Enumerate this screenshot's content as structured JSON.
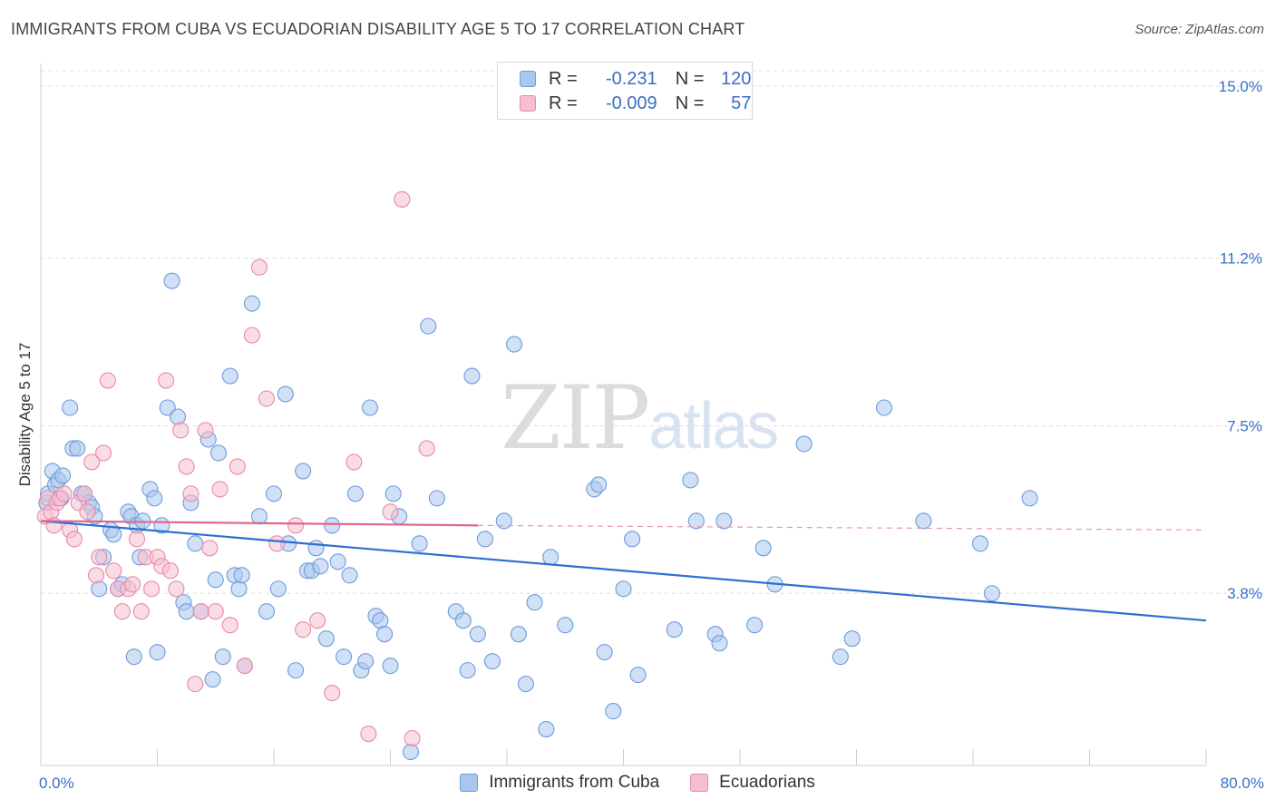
{
  "header": {
    "title": "IMMIGRANTS FROM CUBA VS ECUADORIAN DISABILITY AGE 5 TO 17 CORRELATION CHART",
    "source": "Source: ZipAtlas.com"
  },
  "watermark": {
    "zip": "ZIP",
    "atlas": "atlas"
  },
  "legend": {
    "rows": [
      {
        "r_label": "R =",
        "r_value": "-0.231",
        "n_label": "N =",
        "n_value": "120",
        "color": "#a9c6ef",
        "border": "#6f9bd9"
      },
      {
        "r_label": "R =",
        "r_value": "-0.009",
        "n_label": "N =",
        "n_value": "57",
        "color": "#f6bfd0",
        "border": "#e88aa8"
      }
    ]
  },
  "bottom_legend": {
    "items": [
      {
        "label": "Immigrants from Cuba",
        "color": "#a9c6ef",
        "border": "#6f9bd9"
      },
      {
        "label": "Ecuadorians",
        "color": "#f6bfd0",
        "border": "#e88aa8"
      }
    ]
  },
  "chart_data": {
    "type": "scatter",
    "title": "IMMIGRANTS FROM CUBA VS ECUADORIAN DISABILITY AGE 5 TO 17 CORRELATION CHART",
    "xlabel": "",
    "ylabel": "Disability Age 5 to 17",
    "xlim": [
      0,
      80
    ],
    "ylim": [
      0,
      15.5
    ],
    "x_tick_labels": [
      "0.0%",
      "80.0%"
    ],
    "y_ticks": [
      3.8,
      7.5,
      11.2,
      15.0
    ],
    "y_tick_labels": [
      "3.8%",
      "7.5%",
      "11.2%",
      "15.0%"
    ],
    "grid": "horizontal dashed",
    "legend_position": "top-center",
    "series": [
      {
        "name": "Immigrants from Cuba",
        "color": "#6f9bd9",
        "fill": "#a9c6ef",
        "trend": {
          "x": [
            0,
            80
          ],
          "y": [
            5.4,
            3.2
          ],
          "style": "solid"
        },
        "points": [
          [
            0.4,
            5.8
          ],
          [
            0.5,
            6.0
          ],
          [
            0.8,
            6.5
          ],
          [
            1.0,
            6.2
          ],
          [
            1.2,
            6.3
          ],
          [
            1.4,
            5.9
          ],
          [
            1.5,
            6.4
          ],
          [
            2.0,
            7.9
          ],
          [
            2.2,
            7.0
          ],
          [
            2.5,
            7.0
          ],
          [
            2.8,
            6.0
          ],
          [
            3.0,
            6.0
          ],
          [
            3.3,
            5.8
          ],
          [
            3.5,
            5.7
          ],
          [
            3.7,
            5.5
          ],
          [
            4.0,
            3.9
          ],
          [
            4.3,
            4.6
          ],
          [
            4.8,
            5.2
          ],
          [
            5.0,
            5.1
          ],
          [
            5.3,
            3.9
          ],
          [
            5.6,
            4.0
          ],
          [
            6.0,
            5.6
          ],
          [
            6.2,
            5.5
          ],
          [
            6.4,
            2.4
          ],
          [
            6.6,
            5.3
          ],
          [
            6.8,
            4.6
          ],
          [
            7.0,
            5.4
          ],
          [
            7.5,
            6.1
          ],
          [
            7.8,
            5.9
          ],
          [
            8.0,
            2.5
          ],
          [
            8.3,
            5.3
          ],
          [
            8.7,
            7.9
          ],
          [
            9.0,
            10.7
          ],
          [
            9.4,
            7.7
          ],
          [
            9.8,
            3.6
          ],
          [
            10.0,
            3.4
          ],
          [
            10.3,
            5.8
          ],
          [
            10.6,
            4.9
          ],
          [
            11.0,
            3.4
          ],
          [
            11.5,
            7.2
          ],
          [
            11.8,
            1.9
          ],
          [
            12.0,
            4.1
          ],
          [
            12.2,
            6.9
          ],
          [
            12.5,
            2.4
          ],
          [
            13.0,
            8.6
          ],
          [
            13.3,
            4.2
          ],
          [
            13.6,
            3.9
          ],
          [
            13.8,
            4.2
          ],
          [
            14.0,
            2.2
          ],
          [
            14.5,
            10.2
          ],
          [
            15.0,
            5.5
          ],
          [
            15.5,
            3.4
          ],
          [
            16.0,
            6.0
          ],
          [
            16.3,
            3.9
          ],
          [
            16.8,
            8.2
          ],
          [
            17.0,
            4.9
          ],
          [
            17.5,
            2.1
          ],
          [
            18.0,
            6.5
          ],
          [
            18.3,
            4.3
          ],
          [
            18.6,
            4.3
          ],
          [
            18.9,
            4.8
          ],
          [
            19.2,
            4.4
          ],
          [
            19.6,
            2.8
          ],
          [
            20.0,
            5.3
          ],
          [
            20.4,
            4.5
          ],
          [
            20.8,
            2.4
          ],
          [
            21.2,
            4.2
          ],
          [
            21.6,
            6.0
          ],
          [
            22.0,
            2.1
          ],
          [
            22.3,
            2.3
          ],
          [
            22.6,
            7.9
          ],
          [
            23.0,
            3.3
          ],
          [
            23.3,
            3.2
          ],
          [
            23.6,
            2.9
          ],
          [
            24.0,
            2.2
          ],
          [
            24.2,
            6.0
          ],
          [
            24.6,
            5.5
          ],
          [
            25.4,
            0.3
          ],
          [
            26.0,
            4.9
          ],
          [
            26.6,
            9.7
          ],
          [
            27.2,
            5.9
          ],
          [
            28.5,
            3.4
          ],
          [
            29.0,
            3.2
          ],
          [
            29.3,
            2.1
          ],
          [
            29.6,
            8.6
          ],
          [
            30.0,
            2.9
          ],
          [
            30.5,
            5.0
          ],
          [
            31.0,
            2.3
          ],
          [
            31.8,
            5.4
          ],
          [
            32.5,
            9.3
          ],
          [
            32.8,
            2.9
          ],
          [
            33.3,
            1.8
          ],
          [
            33.9,
            3.6
          ],
          [
            34.7,
            0.8
          ],
          [
            35.0,
            4.6
          ],
          [
            36.0,
            3.1
          ],
          [
            38.0,
            6.1
          ],
          [
            38.3,
            6.2
          ],
          [
            38.7,
            2.5
          ],
          [
            39.3,
            1.2
          ],
          [
            40.0,
            3.9
          ],
          [
            40.6,
            5.0
          ],
          [
            41.0,
            2.0
          ],
          [
            43.5,
            3.0
          ],
          [
            44.6,
            6.3
          ],
          [
            45.0,
            5.4
          ],
          [
            46.3,
            2.9
          ],
          [
            46.6,
            2.7
          ],
          [
            46.9,
            5.4
          ],
          [
            49.0,
            3.1
          ],
          [
            49.6,
            4.8
          ],
          [
            50.4,
            4.0
          ],
          [
            52.4,
            7.1
          ],
          [
            54.9,
            2.4
          ],
          [
            55.7,
            2.8
          ],
          [
            57.9,
            7.9
          ],
          [
            60.6,
            5.4
          ],
          [
            64.5,
            4.9
          ],
          [
            65.3,
            3.8
          ],
          [
            67.9,
            5.9
          ]
        ]
      },
      {
        "name": "Ecuadorians",
        "color": "#e88aa8",
        "fill": "#f6bfd0",
        "trend": {
          "x": [
            0,
            30
          ],
          "y": [
            5.4,
            5.3
          ],
          "style": "solid",
          "extended": {
            "x": [
              30,
              80
            ],
            "y": [
              5.3,
              5.2
            ],
            "style": "dashed"
          }
        },
        "points": [
          [
            0.3,
            5.5
          ],
          [
            0.5,
            5.9
          ],
          [
            0.7,
            5.6
          ],
          [
            0.9,
            5.3
          ],
          [
            1.1,
            5.8
          ],
          [
            1.3,
            5.9
          ],
          [
            1.6,
            6.0
          ],
          [
            2.0,
            5.2
          ],
          [
            2.3,
            5.0
          ],
          [
            2.6,
            5.8
          ],
          [
            3.0,
            6.0
          ],
          [
            3.2,
            5.6
          ],
          [
            3.5,
            6.7
          ],
          [
            3.8,
            4.2
          ],
          [
            4.0,
            4.6
          ],
          [
            4.3,
            6.9
          ],
          [
            4.6,
            8.5
          ],
          [
            5.0,
            4.3
          ],
          [
            5.3,
            3.9
          ],
          [
            5.6,
            3.4
          ],
          [
            6.0,
            3.9
          ],
          [
            6.3,
            4.0
          ],
          [
            6.6,
            5.0
          ],
          [
            6.9,
            3.4
          ],
          [
            7.2,
            4.6
          ],
          [
            7.6,
            3.9
          ],
          [
            8.0,
            4.6
          ],
          [
            8.3,
            4.4
          ],
          [
            8.6,
            8.5
          ],
          [
            8.9,
            4.3
          ],
          [
            9.3,
            3.9
          ],
          [
            9.6,
            7.4
          ],
          [
            10.0,
            6.6
          ],
          [
            10.3,
            6.0
          ],
          [
            10.6,
            1.8
          ],
          [
            11.0,
            3.4
          ],
          [
            11.3,
            7.4
          ],
          [
            11.6,
            4.8
          ],
          [
            12.0,
            3.4
          ],
          [
            12.3,
            6.1
          ],
          [
            13.0,
            3.1
          ],
          [
            13.5,
            6.6
          ],
          [
            14.0,
            2.2
          ],
          [
            14.5,
            9.5
          ],
          [
            15.0,
            11.0
          ],
          [
            15.5,
            8.1
          ],
          [
            16.2,
            4.9
          ],
          [
            17.5,
            5.3
          ],
          [
            18.0,
            3.0
          ],
          [
            19.0,
            3.2
          ],
          [
            20.0,
            1.6
          ],
          [
            21.5,
            6.7
          ],
          [
            22.5,
            0.7
          ],
          [
            24.0,
            5.6
          ],
          [
            24.8,
            12.5
          ],
          [
            25.5,
            0.6
          ],
          [
            26.5,
            7.0
          ]
        ]
      }
    ]
  }
}
